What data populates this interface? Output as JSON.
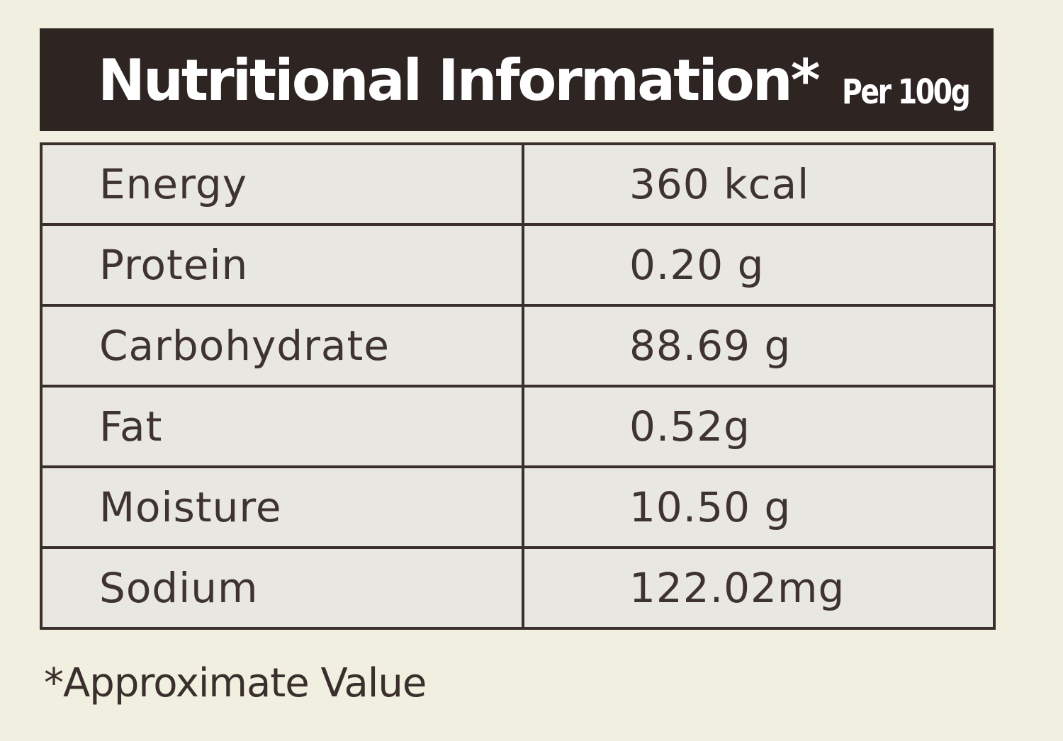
{
  "header": {
    "title": "Nutritional Information*",
    "subtitle": "Per 100g"
  },
  "rows": [
    {
      "nutrient": "Energy",
      "value": "360 kcal"
    },
    {
      "nutrient": "Protein",
      "value": "0.20 g"
    },
    {
      "nutrient": "Carbohydrate",
      "value": "88.69 g"
    },
    {
      "nutrient": "Fat",
      "value": "0.52g"
    },
    {
      "nutrient": "Moisture",
      "value": "10.50 g"
    },
    {
      "nutrient": "Sodium",
      "value": "122.02mg"
    }
  ],
  "footnote": "*Approximate Value",
  "colors": {
    "header_background": "#2e2523",
    "page_background": "#f1efe0",
    "table_background": "#e9e7e2",
    "text": "#3e3331"
  }
}
